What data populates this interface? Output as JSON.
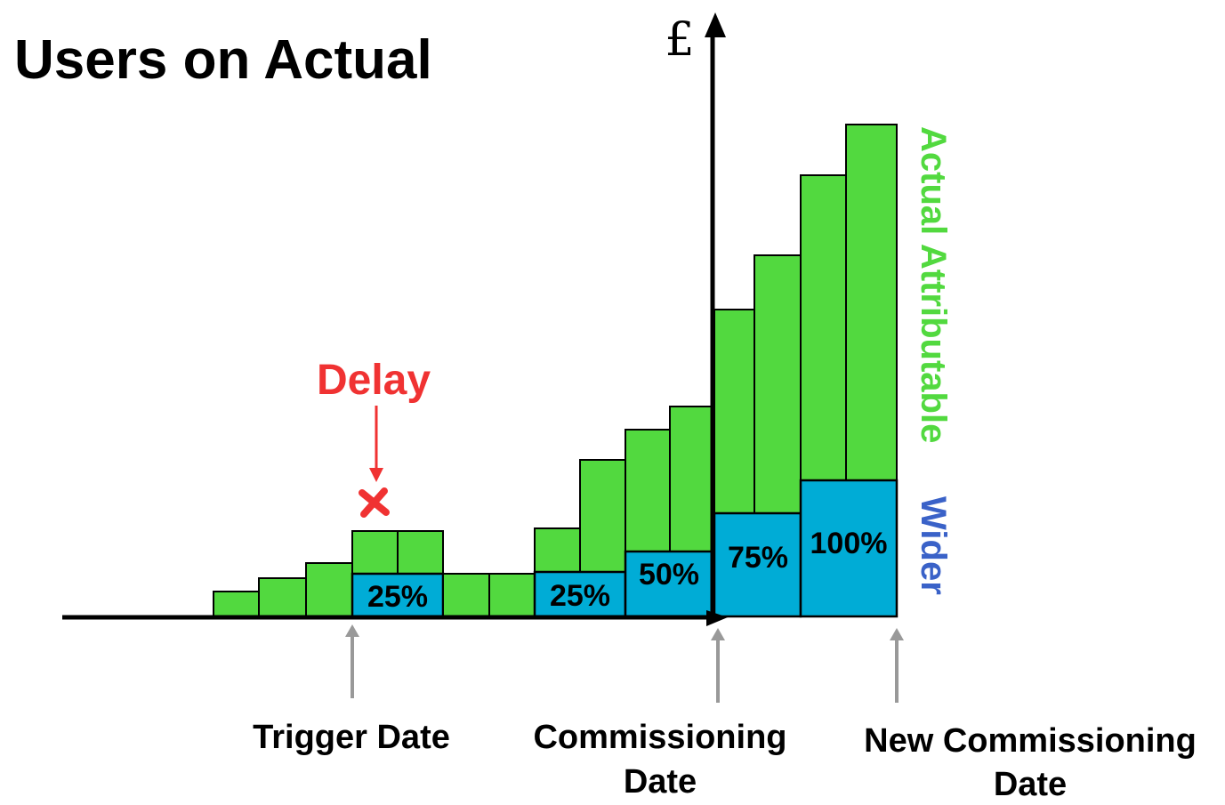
{
  "title": "Users on Actual",
  "axis_symbol": "£",
  "delay_label": "Delay",
  "segment_labels": [
    "25%",
    "25%",
    "50%",
    "75%",
    "100%"
  ],
  "legend": {
    "actual": "Actual Attributable",
    "wider": "Wider"
  },
  "date_labels": {
    "trigger": "Trigger Date",
    "commissioning": [
      "Commissioning",
      "Date"
    ],
    "new_commissioning": [
      "New Commissioning",
      "Date"
    ]
  }
}
